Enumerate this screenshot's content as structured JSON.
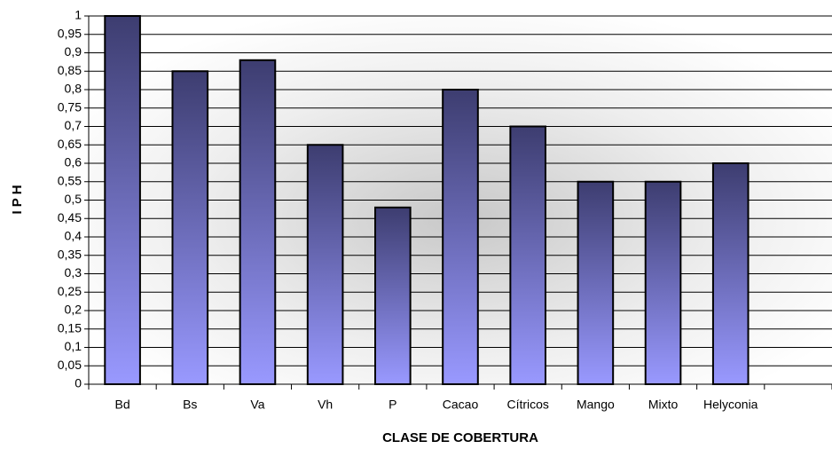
{
  "chart_data": {
    "type": "bar",
    "xlabel": "CLASE DE COBERTURA",
    "ylabel": "I P H",
    "categories": [
      "Bd",
      "Bs",
      "Va",
      "Vh",
      "P",
      "Cacao",
      "Cítricos",
      "Mango",
      "Mixto",
      "Helyconia",
      null
    ],
    "values": [
      1,
      0.85,
      0.88,
      0.65,
      0.48,
      0.8,
      0.7,
      0.55,
      0.55,
      0.6,
      null
    ],
    "color": [
      "#3d3d70",
      "#9999ff"
    ],
    "ylim": [
      0,
      1
    ],
    "yticks": [
      0,
      {
        "value": 0.05,
        "label": "0,05"
      },
      {
        "value": 0.1,
        "label": "0,1"
      },
      {
        "value": 0.15,
        "label": "0,15"
      },
      {
        "value": 0.2,
        "label": "0,2"
      },
      {
        "value": 0.25,
        "label": "0,25"
      },
      {
        "value": 0.3,
        "label": "0,3"
      },
      {
        "value": 0.35,
        "label": "0,35"
      },
      {
        "value": 0.4,
        "label": "0,4"
      },
      {
        "value": 0.45,
        "label": "0,45"
      },
      {
        "value": 0.5,
        "label": "0,5"
      },
      {
        "value": 0.55,
        "label": "0,55"
      },
      {
        "value": 0.6,
        "label": "0,6"
      },
      {
        "value": 0.65,
        "label": "0,65"
      },
      {
        "value": 0.7,
        "label": "0,7"
      },
      {
        "value": 0.75,
        "label": "0,75"
      },
      {
        "value": 0.8,
        "label": "0,8"
      },
      {
        "value": 0.85,
        "label": "0,85"
      },
      {
        "value": 0.9,
        "label": "0,9"
      },
      {
        "value": 0.95,
        "label": "0,95"
      },
      1
    ],
    "grid": true
  }
}
